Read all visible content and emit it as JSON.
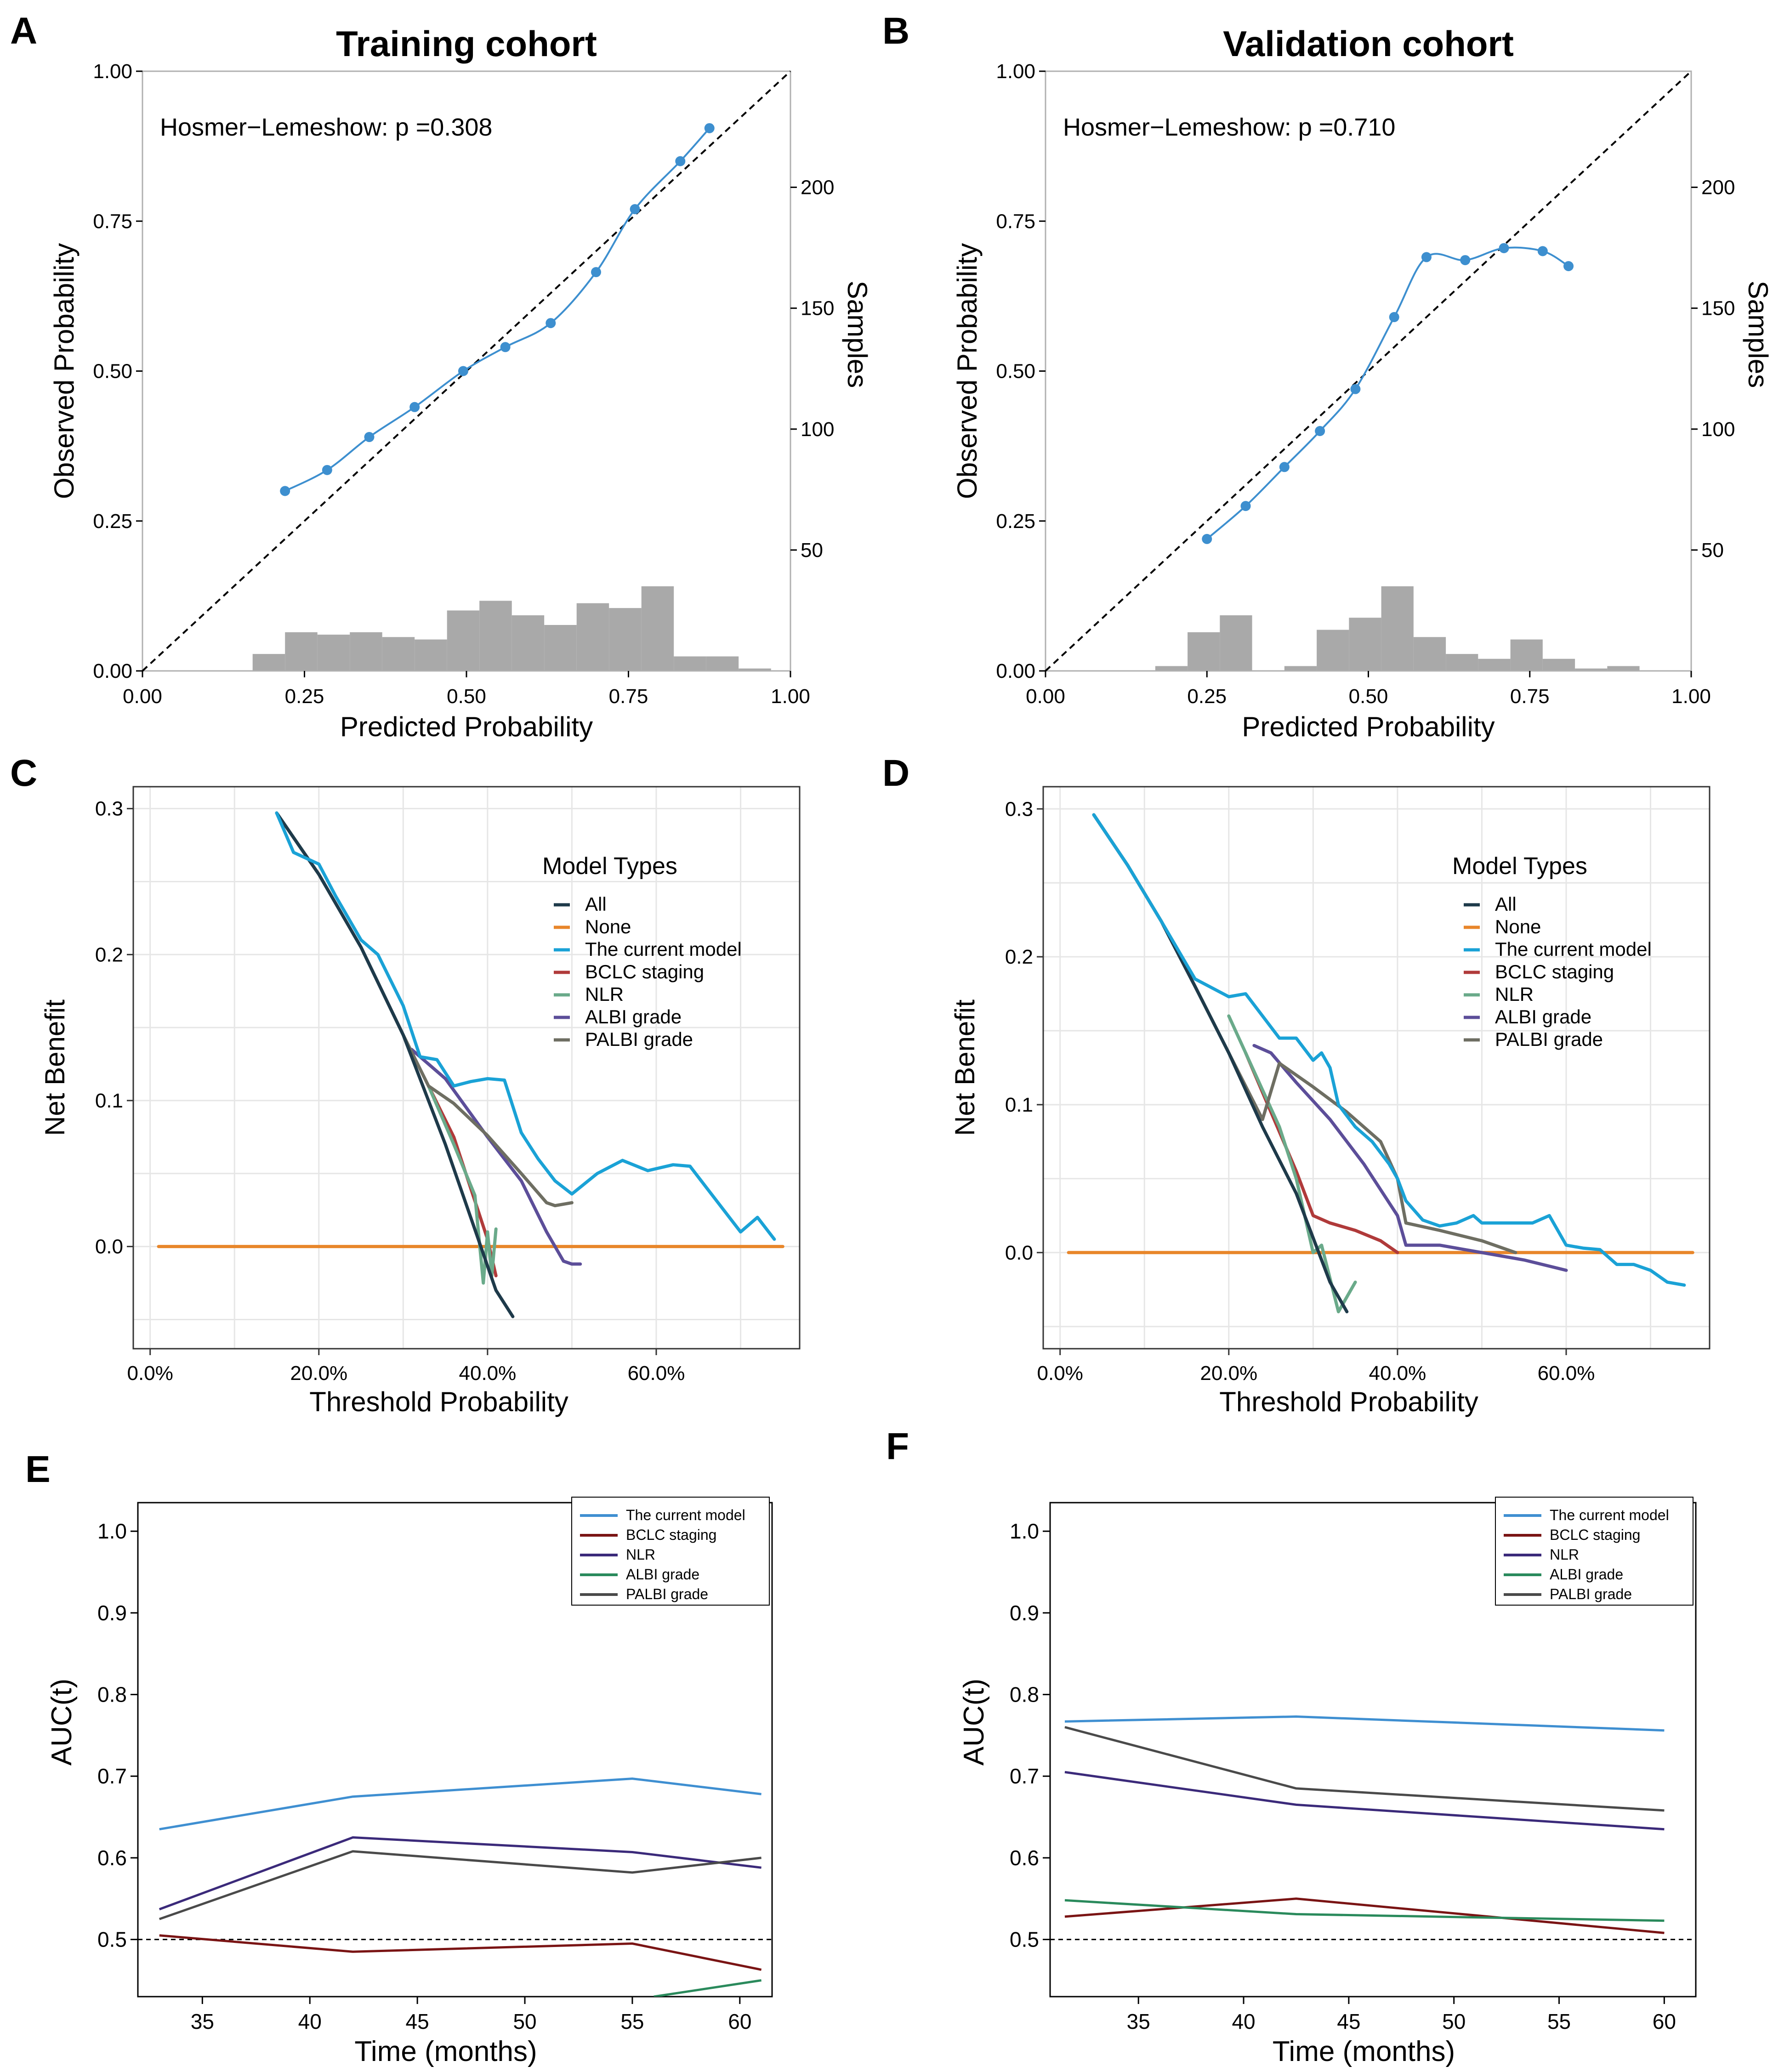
{
  "figure": {
    "background": "#ffffff"
  },
  "chart_data": [
    {
      "id": "A",
      "panel_label": "A",
      "type": "calibration",
      "title": "Training cohort",
      "xlabel": "Predicted Probability",
      "ylabel": "Observed Probability",
      "y2label": "Samples",
      "xlim": [
        0,
        1
      ],
      "ylim": [
        0,
        1
      ],
      "y2lim": [
        0,
        248
      ],
      "xticks": [
        0,
        0.25,
        0.5,
        0.75,
        1.0
      ],
      "xtick_labels": [
        "0.00",
        "0.25",
        "0.50",
        "0.75",
        "1.00"
      ],
      "yticks": [
        0,
        0.25,
        0.5,
        0.75,
        1.0
      ],
      "ytick_labels": [
        "0.00",
        "0.25",
        "0.50",
        "0.75",
        "1.00"
      ],
      "y2ticks": [
        50,
        100,
        150,
        200
      ],
      "y2tick_labels": [
        "50",
        "100",
        "150",
        "200"
      ],
      "annotation": "Hosmer−Lemeshow: p =0.308",
      "curve_color": "#3d8fcf",
      "points": {
        "x": [
          0.22,
          0.285,
          0.35,
          0.42,
          0.495,
          0.56,
          0.63,
          0.7,
          0.76,
          0.83,
          0.875
        ],
        "y": [
          0.3,
          0.335,
          0.39,
          0.44,
          0.5,
          0.54,
          0.58,
          0.665,
          0.77,
          0.85,
          0.905
        ]
      },
      "histogram": {
        "bin_width": 0.05,
        "bin_starts": [
          0.17,
          0.22,
          0.27,
          0.32,
          0.37,
          0.42,
          0.47,
          0.52,
          0.57,
          0.62,
          0.67,
          0.72,
          0.77,
          0.82,
          0.87,
          0.92
        ],
        "counts": [
          7,
          16,
          15,
          16,
          14,
          13,
          25,
          29,
          23,
          19,
          28,
          26,
          35,
          6,
          6,
          1
        ]
      },
      "histogram_color": "#a9a9a9"
    },
    {
      "id": "B",
      "panel_label": "B",
      "type": "calibration",
      "title": "Validation cohort",
      "xlabel": "Predicted Probability",
      "ylabel": "Observed Probability",
      "y2label": "Samples",
      "xlim": [
        0,
        1
      ],
      "ylim": [
        0,
        1
      ],
      "y2lim": [
        0,
        248
      ],
      "xticks": [
        0,
        0.25,
        0.5,
        0.75,
        1.0
      ],
      "xtick_labels": [
        "0.00",
        "0.25",
        "0.50",
        "0.75",
        "1.00"
      ],
      "yticks": [
        0,
        0.25,
        0.5,
        0.75,
        1.0
      ],
      "ytick_labels": [
        "0.00",
        "0.25",
        "0.50",
        "0.75",
        "1.00"
      ],
      "y2ticks": [
        50,
        100,
        150,
        200
      ],
      "y2tick_labels": [
        "50",
        "100",
        "150",
        "200"
      ],
      "annotation": "Hosmer−Lemeshow: p =0.710",
      "curve_color": "#3d8fcf",
      "points": {
        "x": [
          0.25,
          0.31,
          0.37,
          0.425,
          0.48,
          0.54,
          0.59,
          0.65,
          0.71,
          0.77,
          0.81
        ],
        "y": [
          0.22,
          0.275,
          0.34,
          0.4,
          0.47,
          0.59,
          0.69,
          0.685,
          0.705,
          0.7,
          0.675
        ]
      },
      "histogram": {
        "bin_width": 0.05,
        "bin_starts": [
          0.17,
          0.22,
          0.27,
          0.32,
          0.37,
          0.42,
          0.47,
          0.52,
          0.57,
          0.62,
          0.67,
          0.72,
          0.77,
          0.82,
          0.87
        ],
        "counts": [
          2,
          16,
          23,
          0,
          2,
          17,
          22,
          35,
          14,
          7,
          5,
          13,
          5,
          1,
          2
        ]
      },
      "histogram_color": "#a9a9a9"
    },
    {
      "id": "C",
      "panel_label": "C",
      "type": "line",
      "subtype": "decision_curve",
      "xlabel": "Threshold Probability",
      "ylabel": "Net Benefit",
      "xlim": [
        -0.02,
        0.77
      ],
      "ylim": [
        -0.07,
        0.315
      ],
      "xticks": [
        0,
        0.2,
        0.4,
        0.6
      ],
      "xtick_labels": [
        "0.0%",
        "20.0%",
        "40.0%",
        "60.0%"
      ],
      "yticks": [
        0,
        0.1,
        0.2,
        0.3
      ],
      "ytick_labels": [
        "0.0",
        "0.1",
        "0.2",
        "0.3"
      ],
      "plot_bg": "#ffffff",
      "grid_color": "#e6e6e6",
      "legend": {
        "title": "Model   Types",
        "position": "upper-right"
      },
      "series": [
        {
          "name": "All",
          "color": "#1e3a4a",
          "x": [
            0.15,
            0.2,
            0.25,
            0.3,
            0.35,
            0.38,
            0.41,
            0.43
          ],
          "y": [
            0.297,
            0.255,
            0.205,
            0.145,
            0.07,
            0.02,
            -0.03,
            -0.048
          ]
        },
        {
          "name": "None",
          "color": "#e8862a",
          "x": [
            0.01,
            0.75
          ],
          "y": [
            0,
            0
          ]
        },
        {
          "name": "The current model",
          "color": "#1aa2d6",
          "x": [
            0.15,
            0.17,
            0.2,
            0.22,
            0.25,
            0.27,
            0.3,
            0.32,
            0.34,
            0.36,
            0.38,
            0.4,
            0.42,
            0.44,
            0.46,
            0.48,
            0.5,
            0.53,
            0.56,
            0.59,
            0.62,
            0.64,
            0.66,
            0.68,
            0.7,
            0.72,
            0.74
          ],
          "y": [
            0.297,
            0.27,
            0.262,
            0.24,
            0.21,
            0.2,
            0.165,
            0.13,
            0.128,
            0.11,
            0.113,
            0.115,
            0.114,
            0.078,
            0.06,
            0.045,
            0.036,
            0.05,
            0.059,
            0.052,
            0.056,
            0.055,
            0.04,
            0.025,
            0.01,
            0.02,
            0.005
          ]
        },
        {
          "name": "BCLC staging",
          "color": "#b03a3a",
          "x": [
            0.33,
            0.36,
            0.38,
            0.4,
            0.41
          ],
          "y": [
            0.11,
            0.075,
            0.04,
            0.005,
            -0.02
          ]
        },
        {
          "name": "NLR",
          "color": "#6aaa8a",
          "x": [
            0.33,
            0.36,
            0.385,
            0.395,
            0.4,
            0.405,
            0.41
          ],
          "y": [
            0.11,
            0.07,
            0.035,
            -0.025,
            0.01,
            -0.02,
            0.012
          ]
        },
        {
          "name": "ALBI grade",
          "color": "#5c4e99",
          "x": [
            0.31,
            0.35,
            0.4,
            0.44,
            0.47,
            0.49,
            0.5,
            0.51
          ],
          "y": [
            0.135,
            0.115,
            0.075,
            0.045,
            0.01,
            -0.01,
            -0.012,
            -0.012
          ]
        },
        {
          "name": "PALBI grade",
          "color": "#6e6e62",
          "x": [
            0.15,
            0.2,
            0.25,
            0.3,
            0.33,
            0.36,
            0.4,
            0.44,
            0.47,
            0.48,
            0.5
          ],
          "y": [
            0.297,
            0.255,
            0.205,
            0.145,
            0.11,
            0.098,
            0.076,
            0.05,
            0.03,
            0.028,
            0.03
          ]
        }
      ]
    },
    {
      "id": "D",
      "panel_label": "D",
      "type": "line",
      "subtype": "decision_curve",
      "xlabel": "Threshold Probability",
      "ylabel": "Net Benefit",
      "xlim": [
        -0.02,
        0.77
      ],
      "ylim": [
        -0.065,
        0.315
      ],
      "xticks": [
        0,
        0.2,
        0.4,
        0.6
      ],
      "xtick_labels": [
        "0.0%",
        "20.0%",
        "40.0%",
        "60.0%"
      ],
      "yticks": [
        0,
        0.1,
        0.2,
        0.3
      ],
      "ytick_labels": [
        "0.0",
        "0.1",
        "0.2",
        "0.3"
      ],
      "plot_bg": "#ffffff",
      "grid_color": "#e6e6e6",
      "legend": {
        "title": "Model   Types",
        "position": "upper-right"
      },
      "series": [
        {
          "name": "All",
          "color": "#1e3a4a",
          "x": [
            0.04,
            0.08,
            0.12,
            0.16,
            0.2,
            0.24,
            0.28,
            0.3,
            0.32,
            0.34
          ],
          "y": [
            0.296,
            0.262,
            0.224,
            0.18,
            0.135,
            0.085,
            0.04,
            0.01,
            -0.02,
            -0.04
          ]
        },
        {
          "name": "None",
          "color": "#e8862a",
          "x": [
            0.01,
            0.75
          ],
          "y": [
            0,
            0
          ]
        },
        {
          "name": "The current model",
          "color": "#1aa2d6",
          "x": [
            0.04,
            0.08,
            0.12,
            0.16,
            0.2,
            0.22,
            0.24,
            0.26,
            0.28,
            0.3,
            0.31,
            0.32,
            0.33,
            0.35,
            0.37,
            0.39,
            0.4,
            0.41,
            0.43,
            0.45,
            0.47,
            0.49,
            0.5,
            0.52,
            0.54,
            0.56,
            0.58,
            0.6,
            0.62,
            0.64,
            0.66,
            0.68,
            0.7,
            0.72,
            0.74
          ],
          "y": [
            0.296,
            0.262,
            0.224,
            0.185,
            0.173,
            0.175,
            0.16,
            0.145,
            0.145,
            0.13,
            0.135,
            0.125,
            0.1,
            0.085,
            0.075,
            0.06,
            0.05,
            0.035,
            0.022,
            0.018,
            0.02,
            0.025,
            0.02,
            0.02,
            0.02,
            0.02,
            0.025,
            0.005,
            0.003,
            0.002,
            -0.008,
            -0.008,
            -0.012,
            -0.02,
            -0.022
          ]
        },
        {
          "name": "BCLC staging",
          "color": "#b03a3a",
          "x": [
            0.22,
            0.25,
            0.28,
            0.3,
            0.32,
            0.35,
            0.38,
            0.4
          ],
          "y": [
            0.135,
            0.095,
            0.055,
            0.025,
            0.02,
            0.015,
            0.008,
            0.0
          ]
        },
        {
          "name": "NLR",
          "color": "#6aaa8a",
          "x": [
            0.2,
            0.22,
            0.24,
            0.26,
            0.28,
            0.3,
            0.31,
            0.33,
            0.35
          ],
          "y": [
            0.16,
            0.135,
            0.11,
            0.085,
            0.05,
            0.0,
            0.005,
            -0.04,
            -0.02
          ]
        },
        {
          "name": "ALBI grade",
          "color": "#5c4e99",
          "x": [
            0.23,
            0.25,
            0.28,
            0.32,
            0.36,
            0.4,
            0.41,
            0.45,
            0.5,
            0.55,
            0.6
          ],
          "y": [
            0.14,
            0.135,
            0.115,
            0.09,
            0.06,
            0.025,
            0.005,
            0.005,
            0.0,
            -0.005,
            -0.012
          ]
        },
        {
          "name": "PALBI grade",
          "color": "#6e6e62",
          "x": [
            0.04,
            0.08,
            0.12,
            0.16,
            0.2,
            0.24,
            0.26,
            0.3,
            0.34,
            0.38,
            0.4,
            0.41,
            0.45,
            0.5,
            0.54
          ],
          "y": [
            0.296,
            0.262,
            0.224,
            0.18,
            0.135,
            0.09,
            0.128,
            0.112,
            0.095,
            0.075,
            0.05,
            0.02,
            0.015,
            0.008,
            0.0
          ]
        }
      ]
    },
    {
      "id": "E",
      "panel_label": "E",
      "type": "line",
      "subtype": "time_dependent_auc",
      "xlabel": "Time (months)",
      "ylabel": "AUC(t)",
      "xlim": [
        32,
        61.5
      ],
      "ylim": [
        0.43,
        1.035
      ],
      "xticks": [
        35,
        40,
        45,
        50,
        55,
        60
      ],
      "xtick_labels": [
        "35",
        "40",
        "45",
        "50",
        "55",
        "60"
      ],
      "yticks": [
        0.5,
        0.6,
        0.7,
        0.8,
        0.9,
        1.0
      ],
      "ytick_labels": [
        "0.5",
        "0.6",
        "0.7",
        "0.8",
        "0.9",
        "1.0"
      ],
      "reference_line": 0.5,
      "legend": {
        "position": "top-right"
      },
      "series": [
        {
          "name": "The current model",
          "color": "#3f8fd1",
          "x": [
            33,
            42,
            55,
            61
          ],
          "y": [
            0.635,
            0.675,
            0.697,
            0.678
          ]
        },
        {
          "name": "BCLC staging",
          "color": "#7a1414",
          "x": [
            33,
            42,
            55,
            61
          ],
          "y": [
            0.505,
            0.485,
            0.495,
            0.463
          ]
        },
        {
          "name": "NLR",
          "color": "#3b2a7a",
          "x": [
            33,
            42,
            55,
            61
          ],
          "y": [
            0.537,
            0.625,
            0.607,
            0.588
          ]
        },
        {
          "name": "ALBI grade",
          "color": "#2a8a5c",
          "x": [
            56,
            61
          ],
          "y": [
            0.43,
            0.45
          ]
        },
        {
          "name": "PALBI grade",
          "color": "#4a4a4a",
          "x": [
            33,
            42,
            55,
            61
          ],
          "y": [
            0.525,
            0.608,
            0.582,
            0.6
          ]
        }
      ]
    },
    {
      "id": "F",
      "panel_label": "F",
      "type": "line",
      "subtype": "time_dependent_auc",
      "xlabel": "Time (months)",
      "ylabel": "AUC(t)",
      "xlim": [
        30.8,
        61.5
      ],
      "ylim": [
        0.43,
        1.035
      ],
      "xticks": [
        35,
        40,
        45,
        50,
        55,
        60
      ],
      "xtick_labels": [
        "35",
        "40",
        "45",
        "50",
        "55",
        "60"
      ],
      "yticks": [
        0.5,
        0.6,
        0.7,
        0.8,
        0.9,
        1.0
      ],
      "ytick_labels": [
        "0.5",
        "0.6",
        "0.7",
        "0.8",
        "0.9",
        "1.0"
      ],
      "reference_line": 0.5,
      "legend": {
        "position": "top-right"
      },
      "series": [
        {
          "name": "The current model",
          "color": "#3f8fd1",
          "x": [
            31.5,
            42.5,
            60
          ],
          "y": [
            0.767,
            0.773,
            0.756
          ]
        },
        {
          "name": "BCLC staging",
          "color": "#7a1414",
          "x": [
            31.5,
            42.5,
            60
          ],
          "y": [
            0.528,
            0.55,
            0.508
          ]
        },
        {
          "name": "NLR",
          "color": "#3b2a7a",
          "x": [
            31.5,
            42.5,
            60
          ],
          "y": [
            0.705,
            0.665,
            0.635
          ]
        },
        {
          "name": "ALBI grade",
          "color": "#2a8a5c",
          "x": [
            31.5,
            42.5,
            60
          ],
          "y": [
            0.548,
            0.531,
            0.523
          ]
        },
        {
          "name": "PALBI grade",
          "color": "#4a4a4a",
          "x": [
            31.5,
            42.5,
            60
          ],
          "y": [
            0.76,
            0.685,
            0.658
          ]
        }
      ]
    }
  ]
}
